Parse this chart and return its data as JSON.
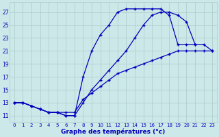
{
  "title": "Graphe des températures (°c)",
  "background_color": "#cce8e8",
  "grid_color": "#aacccc",
  "line_color": "#0000bb",
  "xlim": [
    -0.5,
    23.5
  ],
  "ylim": [
    10.0,
    28.5
  ],
  "xticks": [
    0,
    1,
    2,
    3,
    4,
    5,
    6,
    7,
    8,
    9,
    10,
    11,
    12,
    13,
    14,
    15,
    16,
    17,
    18,
    19,
    20,
    21,
    22,
    23
  ],
  "yticks": [
    11,
    13,
    15,
    17,
    19,
    21,
    23,
    25,
    27
  ],
  "hours": [
    0,
    1,
    2,
    3,
    4,
    5,
    6,
    7,
    8,
    9,
    10,
    11,
    12,
    13,
    14,
    15,
    16,
    17,
    18,
    19,
    20,
    21,
    22,
    23
  ],
  "line1_x": [
    0,
    1,
    2,
    3,
    4,
    5,
    6,
    7,
    8,
    9,
    10,
    11,
    12,
    13,
    14,
    15,
    16,
    17,
    18,
    19,
    20,
    21
  ],
  "line1_y": [
    13.0,
    13.0,
    12.5,
    12.0,
    11.5,
    11.5,
    11.0,
    11.0,
    17.0,
    21.0,
    23.5,
    25.0,
    27.0,
    27.5,
    27.5,
    27.5,
    27.5,
    27.5,
    26.5,
    22.0,
    22.0,
    22.0
  ],
  "line2_x": [
    0,
    1,
    2,
    3,
    4,
    5,
    6,
    7,
    8,
    9,
    10,
    11,
    12,
    13,
    14,
    15,
    16,
    17,
    18,
    19,
    20,
    21,
    22,
    23
  ],
  "line2_y": [
    13.0,
    13.0,
    12.5,
    12.0,
    11.5,
    11.5,
    11.5,
    11.5,
    13.5,
    14.5,
    15.5,
    16.5,
    17.5,
    18.0,
    18.5,
    19.0,
    19.5,
    20.0,
    20.5,
    21.0,
    21.0,
    21.0,
    21.0,
    21.0
  ],
  "line3_x": [
    0,
    1,
    2,
    3,
    4,
    5,
    6,
    7,
    8,
    9,
    10,
    11,
    12,
    13,
    14,
    15,
    16,
    17,
    18,
    19,
    20,
    21,
    22,
    23
  ],
  "line3_y": [
    13.0,
    13.0,
    12.5,
    12.0,
    11.5,
    11.5,
    11.0,
    11.0,
    13.0,
    15.0,
    16.5,
    18.0,
    19.5,
    21.0,
    23.0,
    25.0,
    26.5,
    27.0,
    27.0,
    26.5,
    25.5,
    22.0,
    22.0,
    21.0
  ]
}
